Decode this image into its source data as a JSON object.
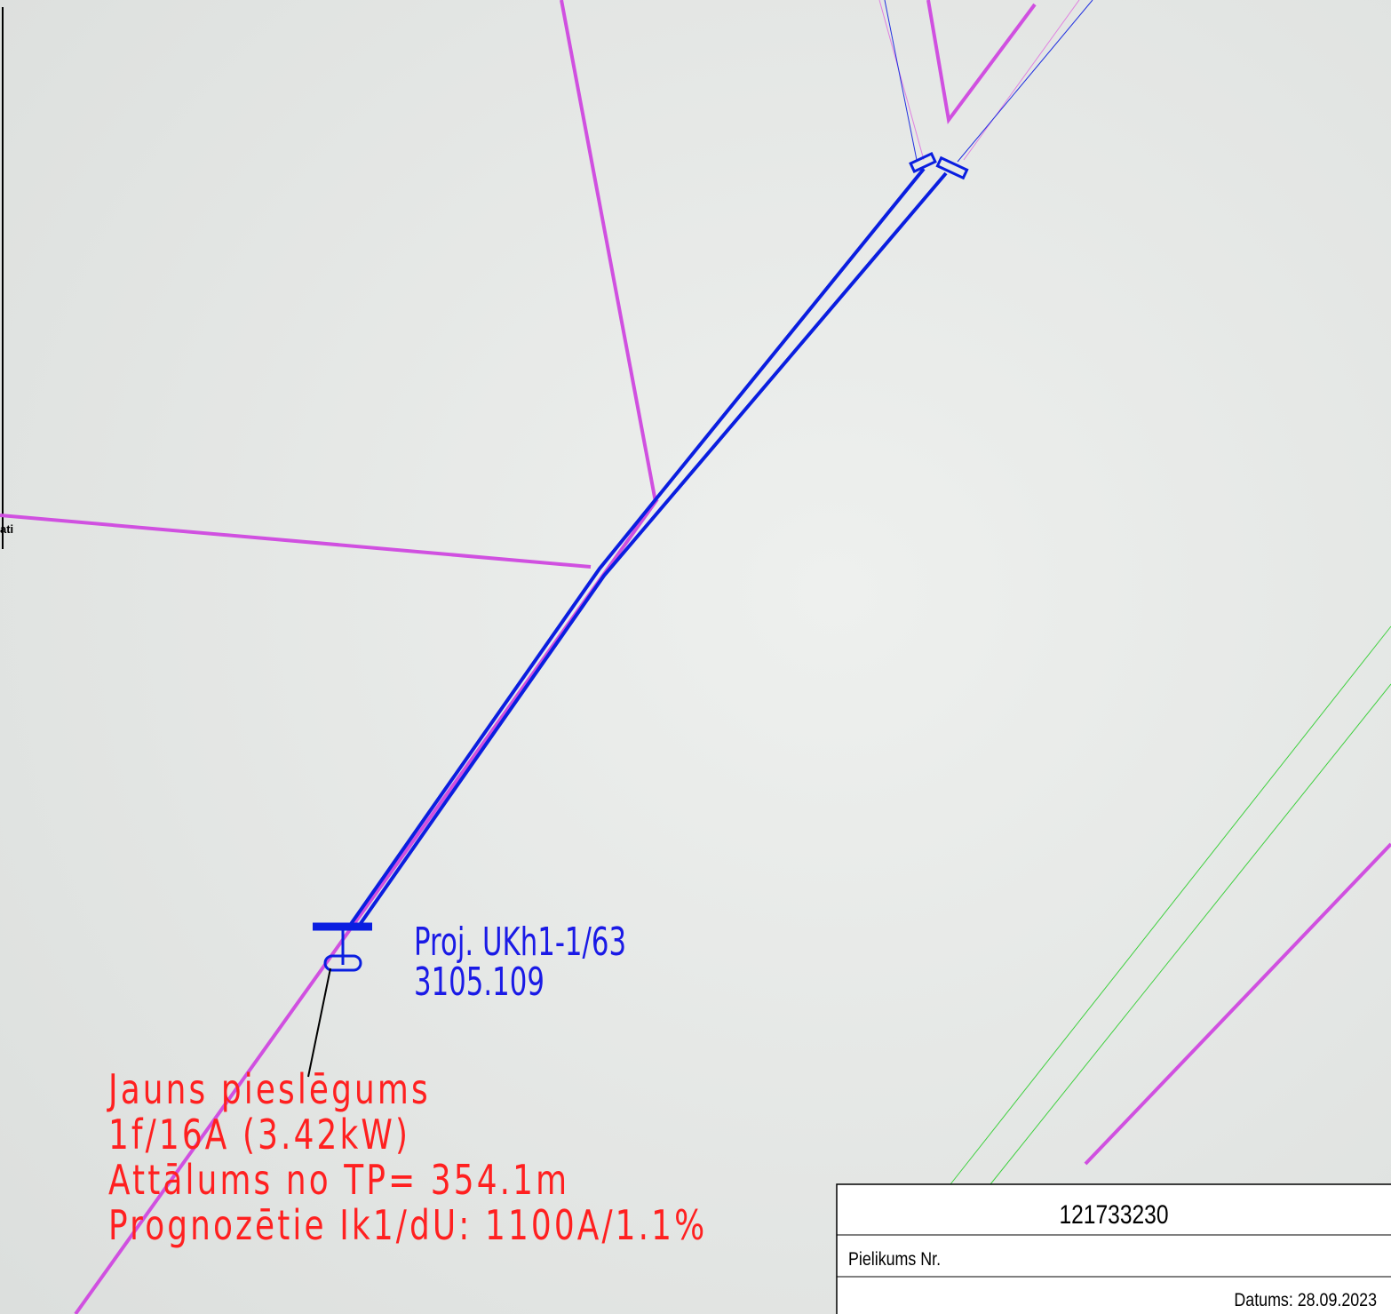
{
  "map": {
    "side_label": "ati",
    "project_label": {
      "line1": "Proj. UKh1-1/63",
      "line2": "3105.109"
    },
    "connection_note": [
      "Jauns pieslēgums",
      "1f/16A (3.42kW)",
      "Attālums no TP= 354.1m",
      "Prognozētie Ik1/dU: 1100A/1.1%"
    ]
  },
  "title_block": {
    "number": "121733230",
    "appendix": "Pielikums Nr.",
    "date": "Datums: 28.09.2023"
  }
}
